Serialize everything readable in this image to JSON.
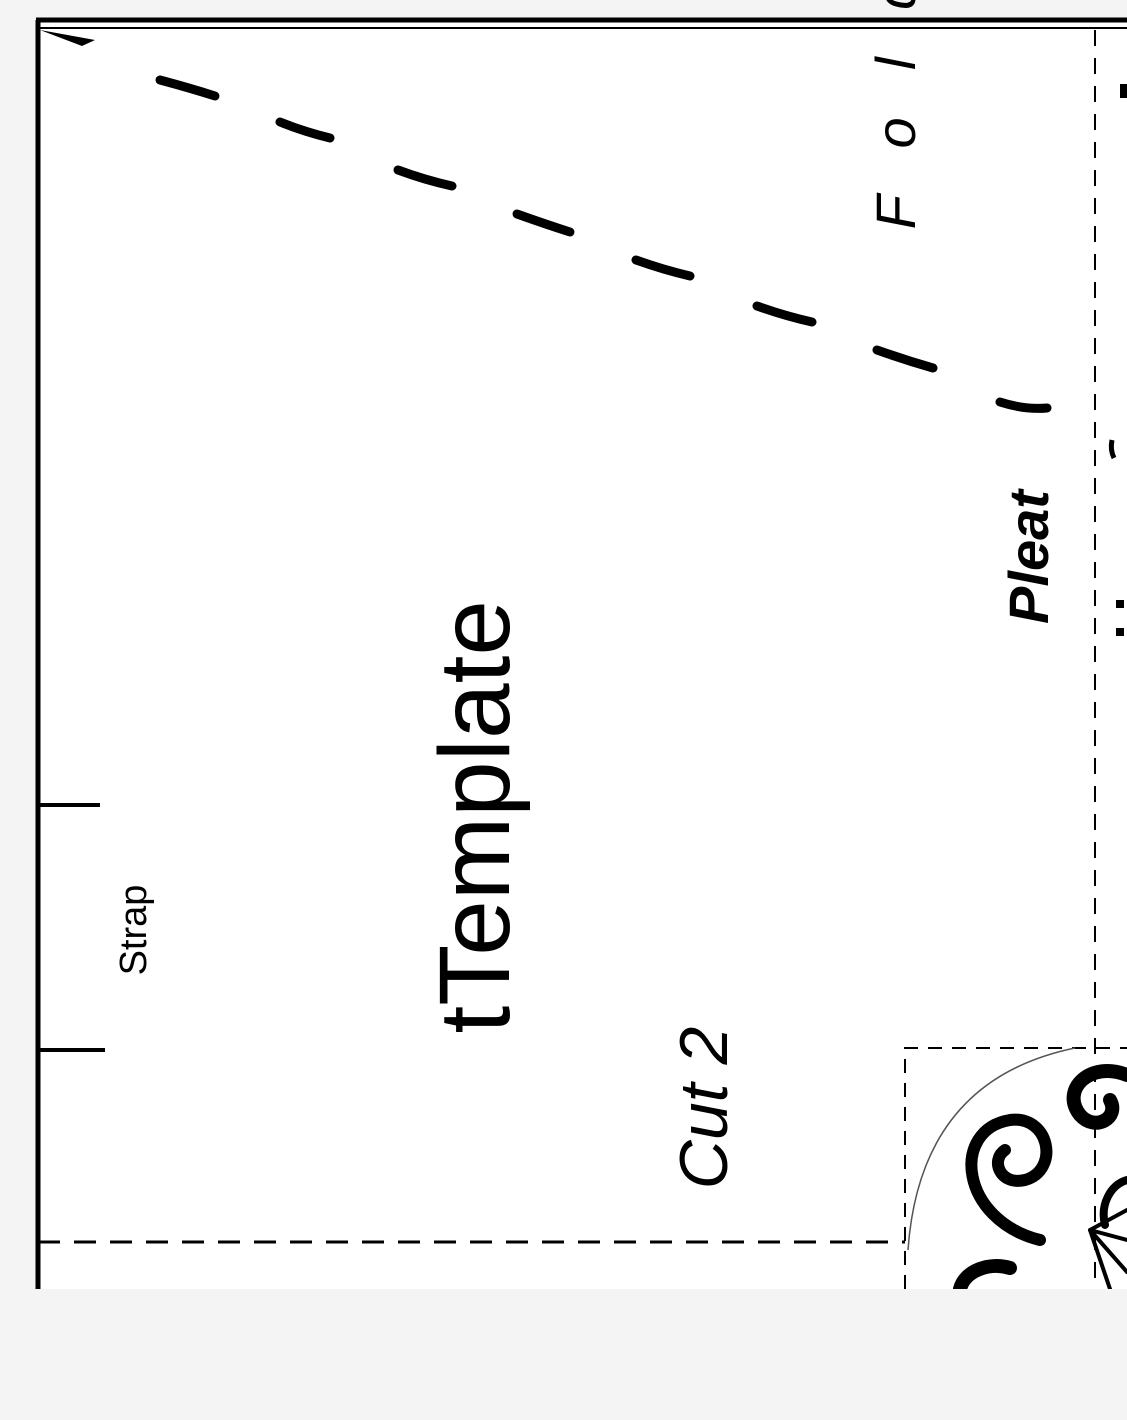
{
  "template": {
    "title": "tTemplate",
    "cut_count": "Cut 2",
    "strap_label": "Strap",
    "pleat_label": "Pleat",
    "fold_label": "F o l d",
    "colors": {
      "paper": "#ffffff",
      "ink": "#000000",
      "margin": "#f4f4f4"
    },
    "ornament_icon": "scroll-ornament"
  }
}
